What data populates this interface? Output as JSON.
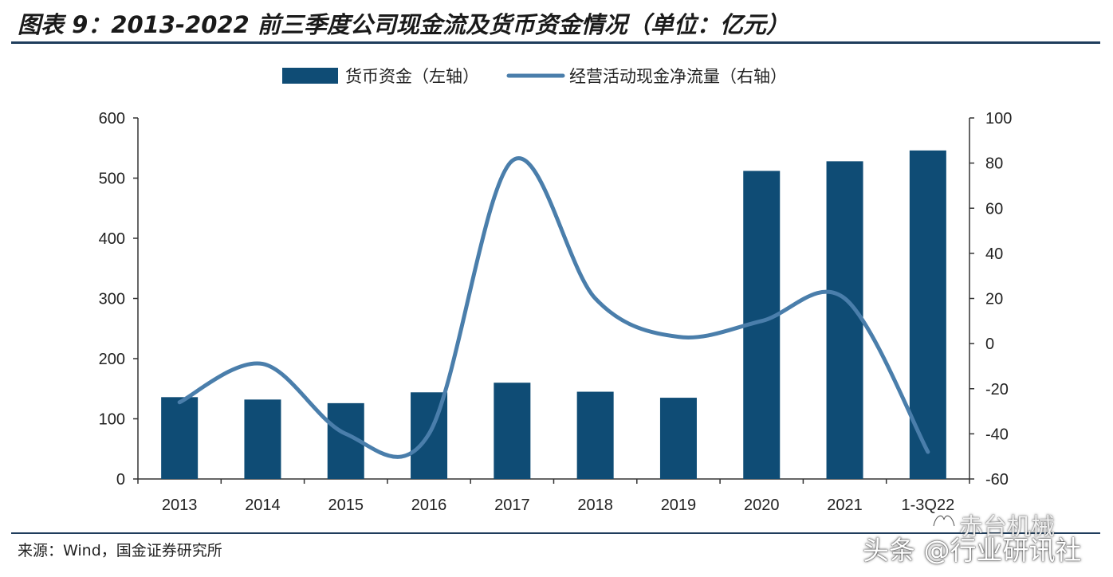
{
  "title": "图表 9：2013-2022 前三季度公司现金流及货币资金情况（单位：亿元）",
  "source": "来源：Wind，国金证券研究所",
  "watermark": {
    "line1": "赤台机械",
    "line2": "头条 @行业研讯社"
  },
  "colors": {
    "bar": "#0f4c75",
    "line": "#4a7eab",
    "rule": "#1f3d5c",
    "axis": "#333333",
    "text": "#222222"
  },
  "chart_data": {
    "type": "bar+line",
    "categories": [
      "2013",
      "2014",
      "2015",
      "2016",
      "2017",
      "2018",
      "2019",
      "2020",
      "2021",
      "1-3Q22"
    ],
    "series": [
      {
        "name": "货币资金（左轴）",
        "type": "bar",
        "axis": "left",
        "values": [
          136,
          132,
          126,
          144,
          160,
          145,
          135,
          512,
          528,
          546
        ]
      },
      {
        "name": "经营活动现金净流量（右轴）",
        "type": "line",
        "axis": "right",
        "smooth": true,
        "values": [
          -26,
          -9,
          -40,
          -40,
          81,
          20,
          3,
          10,
          20,
          -48
        ]
      }
    ],
    "y_left": {
      "min": 0,
      "max": 600,
      "ticks": [
        "0",
        "100",
        "200",
        "300",
        "400",
        "500",
        "600"
      ]
    },
    "y_right": {
      "min": -60,
      "max": 100,
      "ticks": [
        "-60",
        "-40",
        "-20",
        "0",
        "20",
        "40",
        "60",
        "80",
        "100"
      ]
    },
    "legend_position": "top-center",
    "grid": false
  }
}
